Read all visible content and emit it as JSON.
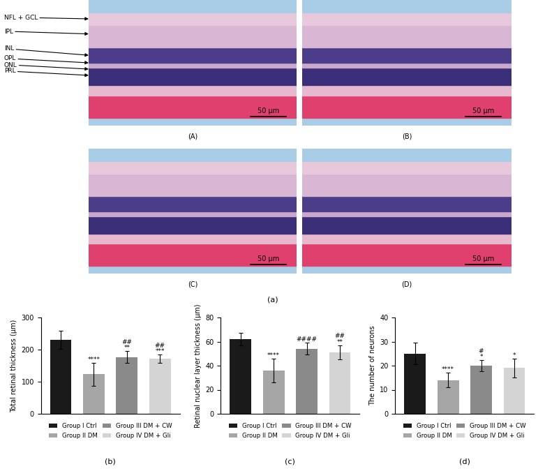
{
  "image_figure": {
    "caption": "(a)",
    "layers": [
      "NFL + GCL",
      "IPL",
      "INL",
      "OPL",
      "ONL",
      "PRL"
    ],
    "panels": [
      {
        "label": "(A)",
        "scale_bar": "50 μm"
      },
      {
        "label": "(B)",
        "scale_bar": "50 μm"
      },
      {
        "label": "(C)",
        "scale_bar": "50 μm"
      },
      {
        "label": "(D)",
        "scale_bar": "50 μm"
      }
    ]
  },
  "chart_data": [
    {
      "type": "bar",
      "caption": "(b)",
      "y_label": "Total retinal thickness (μm)",
      "categories": [
        "Group I Ctrl",
        "Group II DM",
        "Group III DM + CW",
        "Group IV DM + Gli"
      ],
      "values": [
        230,
        123,
        177,
        171
      ],
      "errors": [
        28,
        35,
        18,
        13
      ],
      "annotations": [
        null,
        [
          "****"
        ],
        [
          "##",
          "**"
        ],
        [
          "##",
          "***"
        ]
      ],
      "colors": [
        "#1a1a1a",
        "#a6a6a6",
        "#8a8a8a",
        "#d4d4d4"
      ],
      "ylim": [
        0,
        300
      ],
      "yticks": [
        0,
        100,
        200,
        300
      ],
      "tick_labels": "y",
      "legend": "bottom"
    },
    {
      "type": "bar",
      "caption": "(c)",
      "y_label": "Retinal nuclear layer thickness (μm)",
      "categories": [
        "Group I Ctrl",
        "Group II DM",
        "Group III DM + CW",
        "Group IV DM + Gli"
      ],
      "values": [
        62,
        36,
        54,
        51
      ],
      "errors": [
        5,
        10,
        5,
        6
      ],
      "annotations": [
        null,
        [
          "****"
        ],
        [
          "####"
        ],
        [
          "##",
          "**"
        ]
      ],
      "colors": [
        "#1a1a1a",
        "#a6a6a6",
        "#8a8a8a",
        "#d4d4d4"
      ],
      "ylim": [
        0,
        80
      ],
      "yticks": [
        0,
        20,
        40,
        60,
        80
      ],
      "tick_labels": "y",
      "legend": "bottom"
    },
    {
      "type": "bar",
      "caption": "(d)",
      "y_label": "The number of neurons",
      "categories": [
        "Group I Ctrl",
        "Group II DM",
        "Group III DM + CW",
        "Group IV DM + Gli"
      ],
      "values": [
        25,
        14,
        20,
        19
      ],
      "errors": [
        4.5,
        3,
        2.3,
        3.8
      ],
      "annotations": [
        null,
        [
          "****"
        ],
        [
          "#",
          "*"
        ],
        [
          "*"
        ]
      ],
      "colors": [
        "#1a1a1a",
        "#a6a6a6",
        "#8a8a8a",
        "#d4d4d4"
      ],
      "ylim": [
        0,
        40
      ],
      "yticks": [
        0,
        10,
        20,
        30,
        40
      ],
      "tick_labels": "y",
      "legend": "bottom"
    }
  ]
}
